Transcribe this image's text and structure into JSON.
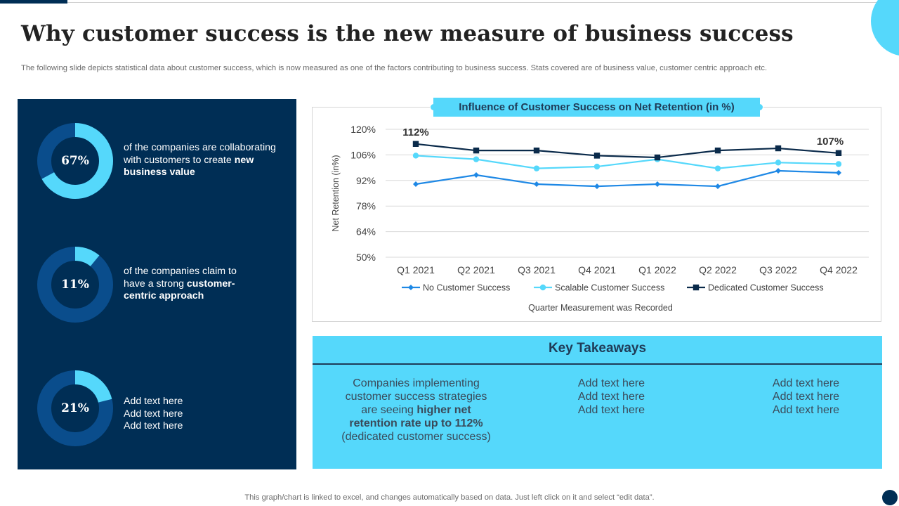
{
  "slide": {
    "title": "Why customer success is the new measure of business success",
    "subtitle": "The following slide depicts statistical data about customer success, which is now measured as one of the factors contributing to business success. Stats covered are of business value, customer centric approach etc.",
    "footnote": "This graph/chart is linked to excel,  and changes automatically based on data. Just left click on it and select “edit data”."
  },
  "colors": {
    "navy": "#002e55",
    "cyan": "#55d8fb",
    "ring_track": "#0a4d8c",
    "no_cs": "#1e88e5",
    "scalable": "#55d8fb",
    "dedicated": "#0a2a4a"
  },
  "stats": [
    {
      "label": "67%",
      "value": 67,
      "text_plain": "of the companies are collaborating with customers to create ",
      "text_bold": "new business value"
    },
    {
      "label": "11%",
      "value": 11,
      "text_plain": "of the companies claim to have a strong ",
      "text_bold": "customer-centric approach"
    },
    {
      "label": "21%",
      "value": 21,
      "lines": [
        "Add text here",
        "Add text here",
        "Add text here"
      ]
    }
  ],
  "chart_data": {
    "type": "line",
    "title": "Influence of Customer Success on Net Retention (in %)",
    "xlabel": "Quarter Measurement was Recorded",
    "ylabel": "Net Retention (in%)",
    "ylim": [
      50,
      120
    ],
    "yticks": [
      "50%",
      "64%",
      "78%",
      "92%",
      "106%",
      "120%"
    ],
    "ytick_values": [
      50,
      64,
      78,
      92,
      106,
      120
    ],
    "categories": [
      "Q1 2021",
      "Q2 2021",
      "Q3 2021",
      "Q4 2021",
      "Q1 2022",
      "Q2 2022",
      "Q3 2022",
      "Q4 2022"
    ],
    "series": [
      {
        "name": "No Customer Success",
        "values": [
          90,
          95,
          90,
          88.8,
          90,
          88.8,
          97.3,
          96.2
        ]
      },
      {
        "name": "Scalable Customer Success",
        "values": [
          105.6,
          103.6,
          98.6,
          99.6,
          103.6,
          98.6,
          101.8,
          101
        ]
      },
      {
        "name": "Dedicated Customer Success",
        "values": [
          112,
          108.4,
          108.4,
          105.6,
          104.6,
          108.4,
          109.6,
          107
        ]
      }
    ],
    "annotations": [
      {
        "text": "112%",
        "series": 2,
        "index": 0
      },
      {
        "text": "107%",
        "series": 2,
        "index": 7
      }
    ],
    "legend_position": "bottom",
    "grid": true
  },
  "takeaways": {
    "title": "Key Takeaways",
    "col1": {
      "lines_plain": [
        "Companies implementing",
        "customer success strategies",
        "are seeing "
      ],
      "bold_1": "higher net",
      "bold_2": "retention rate up to 112%",
      "line_last": "(dedicated customer success)"
    },
    "col2": [
      "Add text here",
      "Add text here",
      "Add text here"
    ],
    "col3": [
      "Add text here",
      "Add text here",
      "Add text here"
    ]
  }
}
